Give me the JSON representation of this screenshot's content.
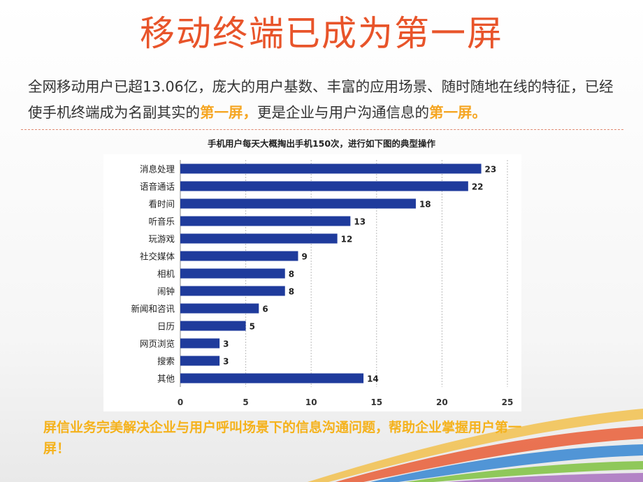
{
  "slide": {
    "title": "移动终端已成为第一屏",
    "intro_part1": "全网移动用户已超13.06亿，庞大的用户基数、丰富的应用场景、随时随地在线的特征，已经使手机终端成为名副其实的",
    "intro_hl1": "第一屏，",
    "intro_part2": "更是企业与用户沟通信息的",
    "intro_hl2": "第一屏。",
    "bottom_text": "屏信业务完美解决企业与用户呼叫场景下的信息沟通问题，帮助企业掌握用户第一屏！"
  },
  "colors": {
    "title": "#e8542a",
    "highlight": "#f5a623",
    "bar": "#1f3b9c"
  },
  "chart_data": {
    "type": "bar",
    "orientation": "horizontal",
    "title": "手机用户每天大概掏出手机150次，进行如下图的典型操作",
    "categories": [
      "消息处理",
      "语音通话",
      "看时间",
      "听音乐",
      "玩游戏",
      "社交媒体",
      "相机",
      "闹钟",
      "新闻和咨讯",
      "日历",
      "网页浏览",
      "搜索",
      "其他"
    ],
    "values": [
      23,
      22,
      18,
      13,
      12,
      9,
      8,
      8,
      6,
      5,
      3,
      3,
      14
    ],
    "xticks": [
      0,
      5,
      10,
      15,
      20,
      25
    ],
    "xlim": [
      0,
      25
    ],
    "grid": true
  }
}
